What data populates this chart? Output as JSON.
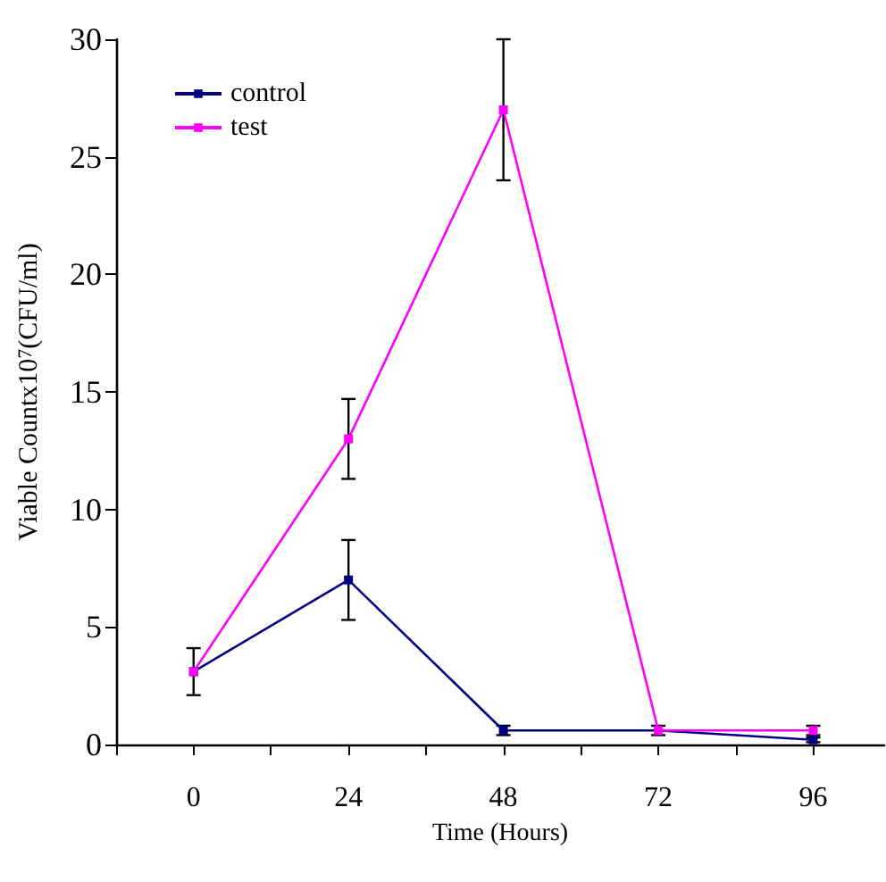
{
  "chart_data": {
    "type": "line",
    "xlabel": "Time (Hours)",
    "ylabel": "Viable Countx10$^{7}$(CFU/ml)",
    "x": [
      0,
      24,
      48,
      72,
      96
    ],
    "series": [
      {
        "name": "control",
        "color": "#000080",
        "values": [
          3.1,
          7.0,
          0.6,
          0.6,
          0.2
        ],
        "errors": [
          1,
          1.7,
          0.2,
          0.2,
          0.1
        ]
      },
      {
        "name": "test",
        "color": "#ff00ff",
        "values": [
          3.1,
          13.0,
          27.0,
          0.6,
          0.6
        ],
        "errors": [
          null,
          1.7,
          3,
          null,
          0.2
        ]
      }
    ],
    "xlim": [
      -12,
      107
    ],
    "xticks": [
      {
        "value": -12,
        "label": null
      },
      0,
      {
        "value": 12,
        "label": null
      },
      24,
      {
        "value": 36,
        "label": null
      },
      48,
      {
        "value": 60,
        "label": null
      },
      72,
      {
        "value": 84,
        "label": null
      },
      96
    ],
    "ylim": [
      0,
      30
    ],
    "yticks": [
      0,
      5,
      10,
      15,
      20,
      25,
      30
    ],
    "grid": false,
    "legend": "top left",
    "marker": "square",
    "line_style": "solid"
  }
}
